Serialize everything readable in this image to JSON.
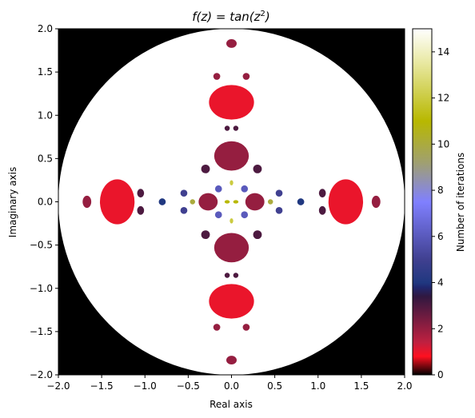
{
  "chart_data": {
    "type": "heatmap",
    "title_prefix": "f(z) = tan(z",
    "title_sup": "2",
    "title_suffix": ")",
    "xlabel": "Real axis",
    "ylabel": "Imaginary axis",
    "xlim": [
      -2.0,
      2.0
    ],
    "ylim": [
      -2.0,
      2.0
    ],
    "xticks": [
      -2.0,
      -1.5,
      -1.0,
      -0.5,
      0.0,
      0.5,
      1.0,
      1.5,
      2.0
    ],
    "xtick_labels": [
      "−2.0",
      "−1.5",
      "−1.0",
      "−0.5",
      "0.0",
      "0.5",
      "1.0",
      "1.5",
      "2.0"
    ],
    "yticks": [
      2.0,
      1.5,
      1.0,
      0.5,
      0.0,
      -0.5,
      -1.0,
      -1.5,
      -2.0
    ],
    "ytick_labels": [
      "2.0",
      "1.5",
      "1.0",
      "0.5",
      "0.0",
      "−0.5",
      "−1.0",
      "−1.5",
      "−2.0"
    ],
    "colorbar": {
      "label": "Number of iterations",
      "range": [
        0,
        15
      ],
      "ticks": [
        0,
        2,
        4,
        6,
        8,
        10,
        12,
        14
      ],
      "tick_labels": [
        "0",
        "2",
        "4",
        "6",
        "8",
        "10",
        "12",
        "14"
      ],
      "colormap": "gist_stern-like",
      "stops": [
        {
          "v": 0,
          "color": "#000000"
        },
        {
          "v": 0.8,
          "color": "#ff1020"
        },
        {
          "v": 1.4,
          "color": "#c02040"
        },
        {
          "v": 3.4,
          "color": "#301840"
        },
        {
          "v": 3.8,
          "color": "#202870"
        },
        {
          "v": 4.0,
          "color": "#203880"
        },
        {
          "v": 5.0,
          "color": "#404090"
        },
        {
          "v": 7.5,
          "color": "#8080ff"
        },
        {
          "v": 9.2,
          "color": "#a0a070"
        },
        {
          "v": 11.0,
          "color": "#b8b800"
        },
        {
          "v": 13.5,
          "color": "#e8e8a0"
        },
        {
          "v": 15,
          "color": "#ffffff"
        }
      ]
    },
    "escape_radius": 2.0,
    "basins": [
      {
        "x": 0.0,
        "y": 1.15,
        "rx": 0.26,
        "ry": 0.2,
        "iterations": 1
      },
      {
        "x": 0.0,
        "y": -1.15,
        "rx": 0.26,
        "ry": 0.2,
        "iterations": 1
      },
      {
        "x": 1.32,
        "y": 0.0,
        "rx": 0.2,
        "ry": 0.26,
        "iterations": 1
      },
      {
        "x": -1.32,
        "y": 0.0,
        "rx": 0.2,
        "ry": 0.26,
        "iterations": 1
      },
      {
        "x": 0.0,
        "y": 0.53,
        "rx": 0.2,
        "ry": 0.17,
        "iterations": 2
      },
      {
        "x": 0.0,
        "y": -0.53,
        "rx": 0.2,
        "ry": 0.17,
        "iterations": 2
      },
      {
        "x": -0.27,
        "y": 0.0,
        "rx": 0.11,
        "ry": 0.1,
        "iterations": 2
      },
      {
        "x": 0.27,
        "y": 0.0,
        "rx": 0.11,
        "ry": 0.1,
        "iterations": 2
      },
      {
        "x": 0.0,
        "y": 1.83,
        "rx": 0.06,
        "ry": 0.05,
        "iterations": 2
      },
      {
        "x": 0.0,
        "y": -1.83,
        "rx": 0.06,
        "ry": 0.05,
        "iterations": 2
      },
      {
        "x": 1.67,
        "y": 0.0,
        "rx": 0.05,
        "ry": 0.07,
        "iterations": 2
      },
      {
        "x": -1.67,
        "y": 0.0,
        "rx": 0.05,
        "ry": 0.07,
        "iterations": 2
      },
      {
        "x": -0.17,
        "y": 1.45,
        "rx": 0.04,
        "ry": 0.04,
        "iterations": 2
      },
      {
        "x": 0.17,
        "y": 1.45,
        "rx": 0.04,
        "ry": 0.04,
        "iterations": 2
      },
      {
        "x": -0.17,
        "y": -1.45,
        "rx": 0.04,
        "ry": 0.04,
        "iterations": 2
      },
      {
        "x": 0.17,
        "y": -1.45,
        "rx": 0.04,
        "ry": 0.04,
        "iterations": 2
      },
      {
        "x": -1.05,
        "y": 0.1,
        "rx": 0.04,
        "ry": 0.05,
        "iterations": 3
      },
      {
        "x": -1.05,
        "y": -0.1,
        "rx": 0.04,
        "ry": 0.05,
        "iterations": 3
      },
      {
        "x": 1.05,
        "y": 0.1,
        "rx": 0.04,
        "ry": 0.05,
        "iterations": 3
      },
      {
        "x": 1.05,
        "y": -0.1,
        "rx": 0.04,
        "ry": 0.05,
        "iterations": 3
      },
      {
        "x": -0.3,
        "y": 0.38,
        "rx": 0.05,
        "ry": 0.05,
        "iterations": 3
      },
      {
        "x": 0.3,
        "y": 0.38,
        "rx": 0.05,
        "ry": 0.05,
        "iterations": 3
      },
      {
        "x": -0.3,
        "y": -0.38,
        "rx": 0.05,
        "ry": 0.05,
        "iterations": 3
      },
      {
        "x": 0.3,
        "y": -0.38,
        "rx": 0.05,
        "ry": 0.05,
        "iterations": 3
      },
      {
        "x": -0.05,
        "y": 0.85,
        "rx": 0.03,
        "ry": 0.03,
        "iterations": 3
      },
      {
        "x": 0.05,
        "y": 0.85,
        "rx": 0.03,
        "ry": 0.03,
        "iterations": 3
      },
      {
        "x": -0.05,
        "y": -0.85,
        "rx": 0.03,
        "ry": 0.03,
        "iterations": 3
      },
      {
        "x": 0.05,
        "y": -0.85,
        "rx": 0.03,
        "ry": 0.03,
        "iterations": 3
      },
      {
        "x": -0.8,
        "y": 0.0,
        "rx": 0.04,
        "ry": 0.04,
        "iterations": 4
      },
      {
        "x": 0.8,
        "y": 0.0,
        "rx": 0.04,
        "ry": 0.04,
        "iterations": 4
      },
      {
        "x": -0.55,
        "y": 0.1,
        "rx": 0.04,
        "ry": 0.04,
        "iterations": 5
      },
      {
        "x": 0.55,
        "y": 0.1,
        "rx": 0.04,
        "ry": 0.04,
        "iterations": 5
      },
      {
        "x": -0.55,
        "y": -0.1,
        "rx": 0.04,
        "ry": 0.04,
        "iterations": 5
      },
      {
        "x": 0.55,
        "y": -0.1,
        "rx": 0.04,
        "ry": 0.04,
        "iterations": 5
      },
      {
        "x": -0.15,
        "y": 0.15,
        "rx": 0.04,
        "ry": 0.04,
        "iterations": 6
      },
      {
        "x": 0.15,
        "y": 0.15,
        "rx": 0.04,
        "ry": 0.04,
        "iterations": 6
      },
      {
        "x": -0.15,
        "y": -0.15,
        "rx": 0.04,
        "ry": 0.04,
        "iterations": 6
      },
      {
        "x": 0.15,
        "y": -0.15,
        "rx": 0.04,
        "ry": 0.04,
        "iterations": 6
      },
      {
        "x": -0.45,
        "y": 0.0,
        "rx": 0.03,
        "ry": 0.03,
        "iterations": 10
      },
      {
        "x": 0.45,
        "y": 0.0,
        "rx": 0.03,
        "ry": 0.03,
        "iterations": 10
      },
      {
        "x": -0.05,
        "y": 0.0,
        "rx": 0.03,
        "ry": 0.02,
        "iterations": 11
      },
      {
        "x": 0.05,
        "y": 0.0,
        "rx": 0.03,
        "ry": 0.02,
        "iterations": 11
      },
      {
        "x": 0.0,
        "y": 0.22,
        "rx": 0.02,
        "ry": 0.03,
        "iterations": 12
      },
      {
        "x": 0.0,
        "y": -0.22,
        "rx": 0.02,
        "ry": 0.03,
        "iterations": 12
      }
    ]
  }
}
